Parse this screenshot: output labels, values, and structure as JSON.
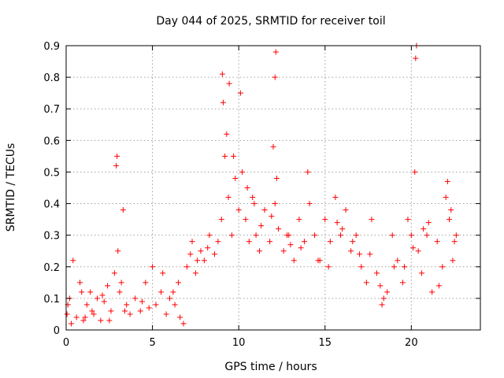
{
  "chart_data": {
    "type": "scatter",
    "title": "Day 044 of 2025, SRMTID for receiver toil",
    "xlabel": "GPS time / hours",
    "ylabel": "SRMTID / TECUs",
    "xlim": [
      0,
      24
    ],
    "ylim": [
      0,
      0.9
    ],
    "xticks": [
      0,
      5,
      10,
      15,
      20
    ],
    "yticks": [
      0,
      0.1,
      0.2,
      0.3,
      0.4,
      0.5,
      0.6,
      0.7,
      0.8,
      0.9
    ],
    "grid": true,
    "marker": "+",
    "series": [
      {
        "name": "SRMTID",
        "color": "#ff0000",
        "x": [
          0.05,
          0.2,
          0.4,
          0.6,
          0.8,
          1.0,
          1.2,
          1.4,
          1.6,
          1.8,
          2.0,
          2.2,
          2.4,
          2.6,
          2.8,
          2.9,
          3.0,
          3.1,
          3.3,
          3.5,
          3.7,
          4.0,
          4.3,
          4.6,
          5.0,
          5.2,
          5.5,
          5.8,
          6.0,
          6.3,
          6.5,
          6.8,
          7.0,
          7.3,
          7.5,
          7.8,
          8.0,
          8.3,
          8.6,
          9.0,
          9.1,
          9.2,
          9.4,
          9.6,
          9.8,
          10.0,
          10.2,
          10.4,
          10.6,
          10.8,
          11.0,
          11.2,
          11.5,
          11.8,
          12.0,
          12.1,
          12.3,
          12.6,
          12.9,
          13.2,
          13.5,
          13.8,
          14.1,
          14.4,
          14.7,
          15.0,
          15.3,
          15.6,
          15.9,
          16.2,
          16.5,
          16.8,
          17.1,
          17.4,
          17.7,
          18.0,
          18.3,
          18.6,
          18.9,
          19.2,
          19.5,
          19.8,
          20.0,
          20.2,
          20.4,
          20.6,
          20.9,
          21.2,
          21.5,
          21.8,
          22.0,
          22.2,
          22.4,
          22.6,
          0.3,
          0.9,
          1.5,
          2.5,
          3.2,
          4.8,
          5.6,
          6.6,
          7.6,
          8.8,
          9.3,
          10.5,
          11.3,
          12.2,
          13.0,
          14.0,
          15.2,
          16.0,
          17.0,
          18.2,
          19.0,
          20.1,
          21.0,
          22.1,
          22.5,
          0.1,
          1.1,
          2.1,
          3.4,
          4.4,
          6.2,
          7.2,
          8.2,
          9.7,
          10.9,
          11.9,
          12.8,
          13.6,
          14.6,
          15.7,
          16.6,
          17.6,
          18.4,
          19.6,
          20.7,
          21.6,
          22.3,
          9.05,
          12.15,
          20.25,
          20.3,
          12.1,
          2.95,
          9.45,
          10.1
        ],
        "y": [
          0.05,
          0.1,
          0.22,
          0.04,
          0.15,
          0.03,
          0.08,
          0.12,
          0.05,
          0.1,
          0.03,
          0.09,
          0.14,
          0.06,
          0.18,
          0.52,
          0.25,
          0.12,
          0.38,
          0.08,
          0.05,
          0.1,
          0.06,
          0.15,
          0.2,
          0.08,
          0.12,
          0.05,
          0.1,
          0.08,
          0.15,
          0.02,
          0.2,
          0.28,
          0.18,
          0.25,
          0.22,
          0.3,
          0.24,
          0.35,
          0.72,
          0.55,
          0.42,
          0.3,
          0.48,
          0.38,
          0.5,
          0.35,
          0.28,
          0.42,
          0.3,
          0.25,
          0.38,
          0.28,
          0.58,
          0.4,
          0.32,
          0.25,
          0.3,
          0.22,
          0.35,
          0.28,
          0.4,
          0.3,
          0.22,
          0.35,
          0.28,
          0.42,
          0.3,
          0.38,
          0.25,
          0.3,
          0.2,
          0.15,
          0.35,
          0.18,
          0.08,
          0.12,
          0.3,
          0.22,
          0.15,
          0.35,
          0.3,
          0.5,
          0.25,
          0.18,
          0.3,
          0.12,
          0.28,
          0.2,
          0.42,
          0.35,
          0.22,
          0.3,
          0.02,
          0.12,
          0.06,
          0.03,
          0.15,
          0.07,
          0.18,
          0.04,
          0.22,
          0.28,
          0.62,
          0.45,
          0.33,
          0.48,
          0.27,
          0.5,
          0.2,
          0.32,
          0.24,
          0.14,
          0.2,
          0.26,
          0.34,
          0.47,
          0.28,
          0.08,
          0.04,
          0.11,
          0.06,
          0.09,
          0.12,
          0.24,
          0.26,
          0.55,
          0.4,
          0.36,
          0.3,
          0.26,
          0.22,
          0.34,
          0.28,
          0.24,
          0.1,
          0.2,
          0.32,
          0.14,
          0.38,
          0.81,
          0.88,
          0.86,
          0.9,
          0.8,
          0.55,
          0.78,
          0.75
        ]
      }
    ]
  }
}
